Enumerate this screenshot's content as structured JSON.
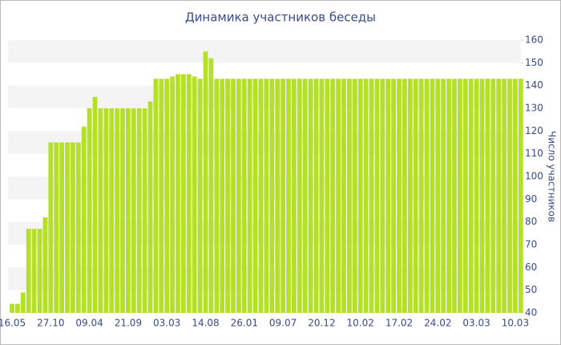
{
  "chart_data": {
    "type": "bar",
    "title": "Динамика участников беседы",
    "y_axis_label": "Число участников",
    "categories": [
      "16.05",
      null,
      null,
      null,
      null,
      null,
      null,
      "27.10",
      null,
      null,
      null,
      null,
      null,
      null,
      "09.04",
      null,
      null,
      null,
      null,
      null,
      null,
      "21.09",
      null,
      null,
      null,
      null,
      null,
      null,
      "03.03",
      null,
      null,
      null,
      null,
      null,
      null,
      "14.08",
      null,
      null,
      null,
      null,
      null,
      null,
      "26.01",
      null,
      null,
      null,
      null,
      null,
      null,
      "09.07",
      null,
      null,
      null,
      null,
      null,
      null,
      "20.12",
      null,
      null,
      null,
      null,
      null,
      null,
      "10.02",
      null,
      null,
      null,
      null,
      null,
      null,
      "17.02",
      null,
      null,
      null,
      null,
      null,
      null,
      "24.02",
      null,
      null,
      null,
      null,
      null,
      null,
      "03.03",
      null,
      null,
      null,
      null,
      null,
      null,
      "10.03",
      null
    ],
    "values": [
      44,
      44,
      49,
      77,
      77,
      77,
      82,
      115,
      115,
      115,
      115,
      115,
      115,
      122,
      130,
      135,
      130,
      130,
      130,
      130,
      130,
      130,
      130,
      130,
      130,
      133,
      143,
      143,
      143,
      144,
      145,
      145,
      145,
      144,
      143,
      155,
      152,
      143,
      143,
      143,
      143,
      143,
      143,
      143,
      143,
      143,
      143,
      143,
      143,
      143,
      143,
      143,
      143,
      143,
      143,
      143,
      143,
      143,
      143,
      143,
      143,
      143,
      143,
      143,
      143,
      143,
      143,
      143,
      143,
      143,
      143,
      143,
      143,
      143,
      143,
      143,
      143,
      143,
      143,
      143,
      143,
      143,
      143,
      143,
      143,
      143,
      143,
      143,
      143,
      143,
      143,
      143,
      143
    ],
    "color": "#b5e02a",
    "ylim": [
      40,
      160
    ],
    "yticks": [
      40,
      50,
      60,
      70,
      80,
      90,
      100,
      110,
      120,
      130,
      140,
      150,
      160
    ],
    "grid": true
  }
}
